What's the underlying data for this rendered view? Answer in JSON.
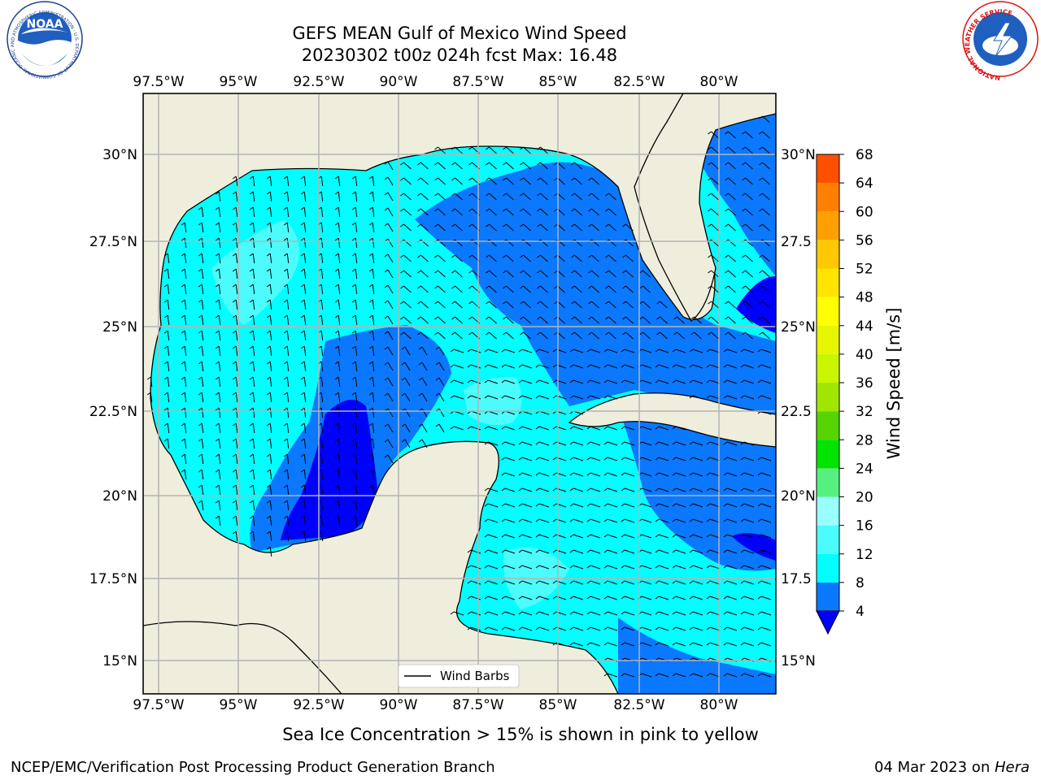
{
  "title": {
    "line1": "GEFS MEAN Gulf of Mexico Wind Speed",
    "line2": "20230302 t00z 024h fcst   Max: 16.48"
  },
  "logos": {
    "noaa": {
      "text": "NOAA",
      "ring_text": "NATIONAL OCEANIC AND ATMOSPHERIC ADMINISTRATION · U.S. DEPARTMENT OF COMMERCE"
    },
    "nws": {
      "ring_text": "NATIONAL WEATHER SERVICE"
    }
  },
  "map": {
    "lon_labels": [
      "97.5°W",
      "95°W",
      "92.5°W",
      "90°W",
      "87.5°W",
      "85°W",
      "82.5°W",
      "80°W"
    ],
    "lat_labels_left": [
      "30°N",
      "27.5°N",
      "25°N",
      "22.5°N",
      "20°N",
      "17.5°N",
      "15°N"
    ],
    "lat_labels_right": [
      "30°N",
      "27.5",
      "25°N",
      "22.5",
      "20°N",
      "17.5",
      "15°N"
    ],
    "legend_label": "Wind Barbs"
  },
  "colorbar": {
    "label": "Wind Speed [m/s]",
    "ticks": [
      "4",
      "8",
      "12",
      "16",
      "20",
      "24",
      "28",
      "32",
      "36",
      "40",
      "44",
      "48",
      "52",
      "56",
      "60",
      "64",
      "68"
    ],
    "colors": [
      "#0a78ff",
      "#00ffff",
      "#4cfbfb",
      "#99ffff",
      "#55f07f",
      "#00e400",
      "#55d400",
      "#a0e600",
      "#c9f500",
      "#e6f500",
      "#ffff00",
      "#ffe400",
      "#ffc800",
      "#ffa000",
      "#ff8000",
      "#ff5000",
      "#ff2000",
      "#ff0000"
    ],
    "extend_color": "#0000ff"
  },
  "colors": {
    "land": "#efeddc",
    "sea_4_8": "#0a78ff",
    "sea_8_12": "#00ffff",
    "sea_12_16": "#4cfbfb",
    "sea_below_4": "#0000ff",
    "grid": "#b4b4b4"
  },
  "footer": {
    "note": "Sea Ice Concentration > 15% is shown in pink to yellow",
    "left": "NCEP/EMC/Verification Post Processing Product Generation Branch",
    "right_prefix": "04 Mar 2023 on ",
    "right_host": "Hera"
  }
}
